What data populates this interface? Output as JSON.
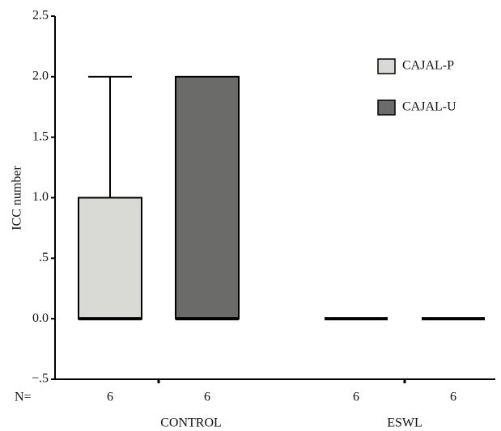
{
  "chart_data": {
    "type": "box",
    "y_label": "ICC number",
    "categories": [
      "CONTROL",
      "ESWL"
    ],
    "n_label": "N=",
    "series": [
      {
        "name": "CAJAL-P",
        "color": "#d9d9d6",
        "min": [
          0,
          0
        ],
        "q1": [
          0,
          0
        ],
        "median": [
          0,
          0
        ],
        "q3": [
          1,
          0
        ],
        "max": [
          2,
          0
        ],
        "n": [
          6,
          6
        ]
      },
      {
        "name": "CAJAL-U",
        "color": "#6b6b69",
        "min": [
          0,
          0
        ],
        "q1": [
          0,
          0
        ],
        "median": [
          0,
          0
        ],
        "q3": [
          2,
          0
        ],
        "max": [
          2,
          0
        ],
        "n": [
          6,
          6
        ]
      }
    ],
    "ylim": [
      -0.5,
      2.5
    ],
    "yticks": [
      {
        "value": -0.5,
        "label": "−.5"
      },
      {
        "value": 0,
        "label": "0.0"
      },
      {
        "value": 0.5,
        "label": ".5"
      },
      {
        "value": 1,
        "label": "1.0"
      },
      1.5,
      {
        "value": 2,
        "label": "2.0"
      },
      2.5
    ],
    "legend": "upper right"
  }
}
